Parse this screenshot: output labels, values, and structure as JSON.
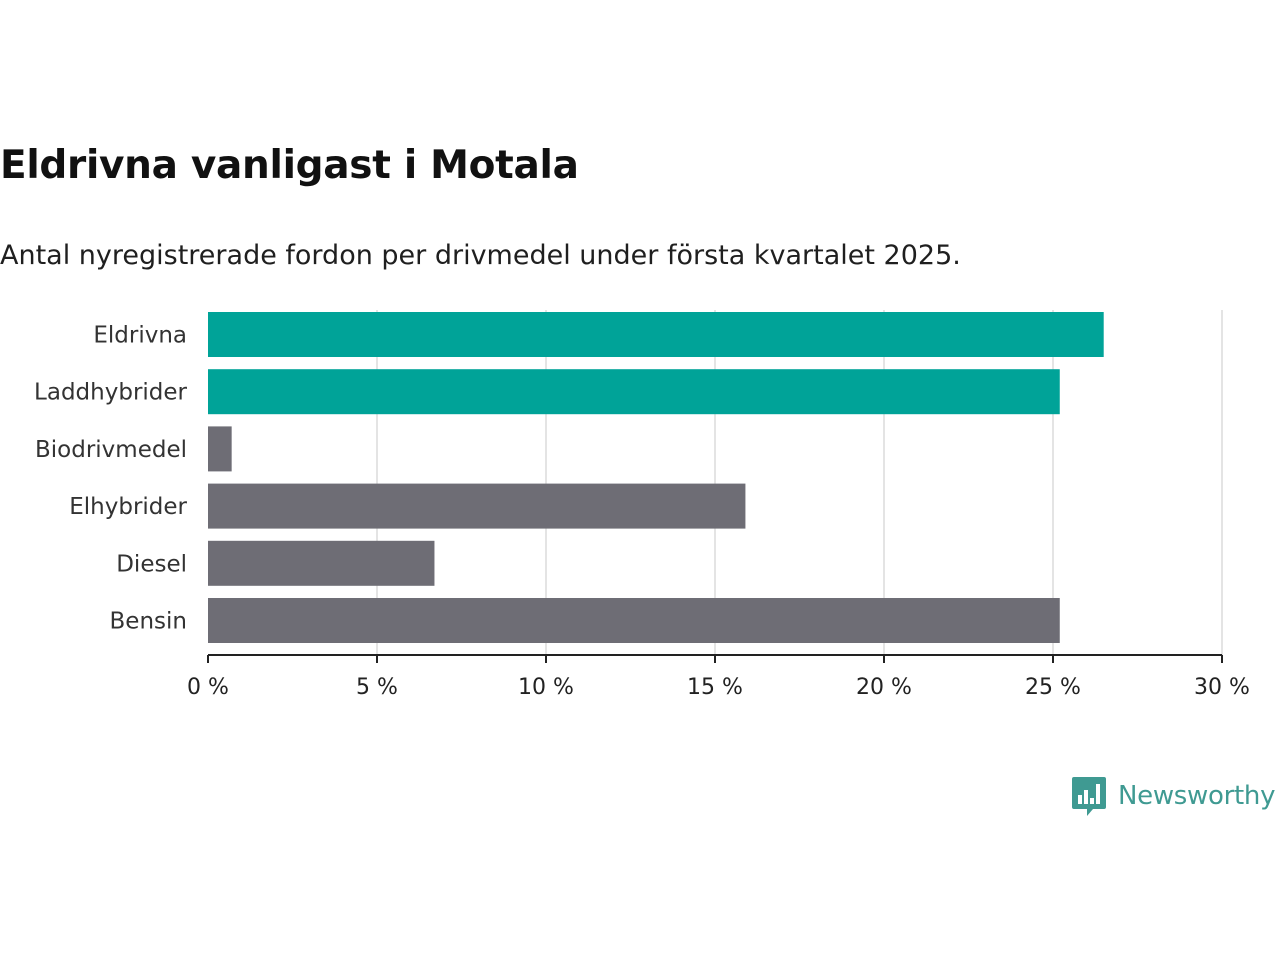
{
  "chart_data": {
    "type": "bar",
    "orientation": "horizontal",
    "title": "Eldrivna vanligast i Motala",
    "subtitle": "Antal nyregistrerade fordon per drivmedel under första kvartalet 2025.",
    "categories": [
      "Eldrivna",
      "Laddhybrider",
      "Biodrivmedel",
      "Elhybrider",
      "Diesel",
      "Bensin"
    ],
    "values": [
      26.5,
      25.2,
      0.7,
      15.9,
      6.7,
      25.2
    ],
    "unit": "%",
    "colors": [
      "#00a398",
      "#00a398",
      "#6e6d75",
      "#6e6d75",
      "#6e6d75",
      "#6e6d75"
    ],
    "xlim": [
      0,
      30
    ],
    "xticks": [
      0,
      5,
      10,
      15,
      20,
      25,
      30
    ],
    "xtick_labels": [
      "0 %",
      "5 %",
      "10 %",
      "15 %",
      "20 %",
      "25 %",
      "30 %"
    ],
    "grid": true
  },
  "brand": {
    "name": "Newsworthy",
    "logo_icon": "newsworthy-logo-icon",
    "color": "#3f9a92"
  }
}
